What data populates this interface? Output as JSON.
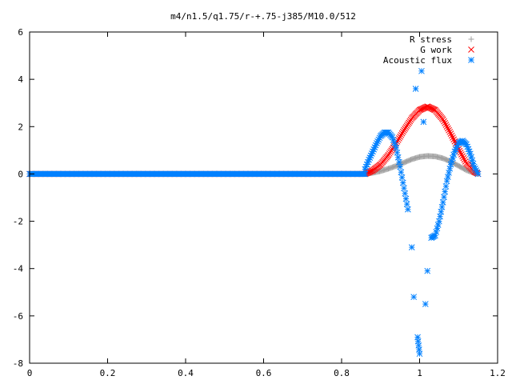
{
  "chart_data": {
    "type": "scatter",
    "title": "m4/n1.5/q1.75/r-+.75-j385/M10.0/512",
    "xlabel": "",
    "ylabel": "",
    "xlim": [
      0,
      1.2
    ],
    "ylim": [
      -8,
      6
    ],
    "x_ticks": [
      "0",
      "0.2",
      "0.4",
      "0.6",
      "0.8",
      "1",
      "1.2"
    ],
    "y_ticks": [
      "-8",
      "-6",
      "-4",
      "-2",
      "0",
      "2",
      "4",
      "6"
    ],
    "legend_position": "top-right",
    "grid": false,
    "series": [
      {
        "name": "R stress",
        "color": "#a0a0a0",
        "marker": "plus",
        "x": [
          0.86,
          0.88,
          0.9,
          0.92,
          0.94,
          0.96,
          0.98,
          1.0,
          1.02,
          1.04,
          1.06,
          1.08,
          1.1,
          1.12,
          1.14,
          1.15
        ],
        "y": [
          0.0,
          0.05,
          0.12,
          0.22,
          0.34,
          0.48,
          0.62,
          0.72,
          0.76,
          0.74,
          0.66,
          0.52,
          0.34,
          0.16,
          0.04,
          0.0
        ]
      },
      {
        "name": "G work",
        "color": "#ff0000",
        "marker": "cross",
        "x": [
          0.86,
          0.88,
          0.9,
          0.92,
          0.94,
          0.96,
          0.98,
          1.0,
          1.02,
          1.04,
          1.06,
          1.08,
          1.1,
          1.12,
          1.14,
          1.15
        ],
        "y": [
          0.0,
          0.15,
          0.4,
          0.8,
          1.3,
          1.85,
          2.35,
          2.7,
          2.85,
          2.7,
          2.3,
          1.7,
          1.05,
          0.45,
          0.1,
          0.0
        ]
      },
      {
        "name": "Acoustic flux",
        "color": "#0080ff",
        "marker": "star",
        "x": [
          0.86,
          0.87,
          0.88,
          0.89,
          0.9,
          0.91,
          0.92,
          0.93,
          0.94,
          0.95,
          0.96,
          0.97,
          0.98,
          0.985,
          0.99,
          0.995,
          1.0,
          1.005,
          1.01,
          1.015,
          1.02,
          1.03,
          1.04,
          1.05,
          1.06,
          1.07,
          1.08,
          1.09,
          1.1,
          1.11,
          1.12,
          1.13,
          1.14,
          1.15
        ],
        "y": [
          0.2,
          0.6,
          0.95,
          1.3,
          1.6,
          1.75,
          1.75,
          1.55,
          1.1,
          0.3,
          -0.6,
          -1.5,
          -3.1,
          -5.2,
          3.6,
          -6.9,
          -7.6,
          4.35,
          2.2,
          -5.5,
          -4.1,
          -2.7,
          -2.6,
          -2.0,
          -1.2,
          -0.3,
          0.4,
          0.95,
          1.3,
          1.4,
          1.25,
          0.85,
          0.3,
          0.0
        ]
      }
    ]
  }
}
